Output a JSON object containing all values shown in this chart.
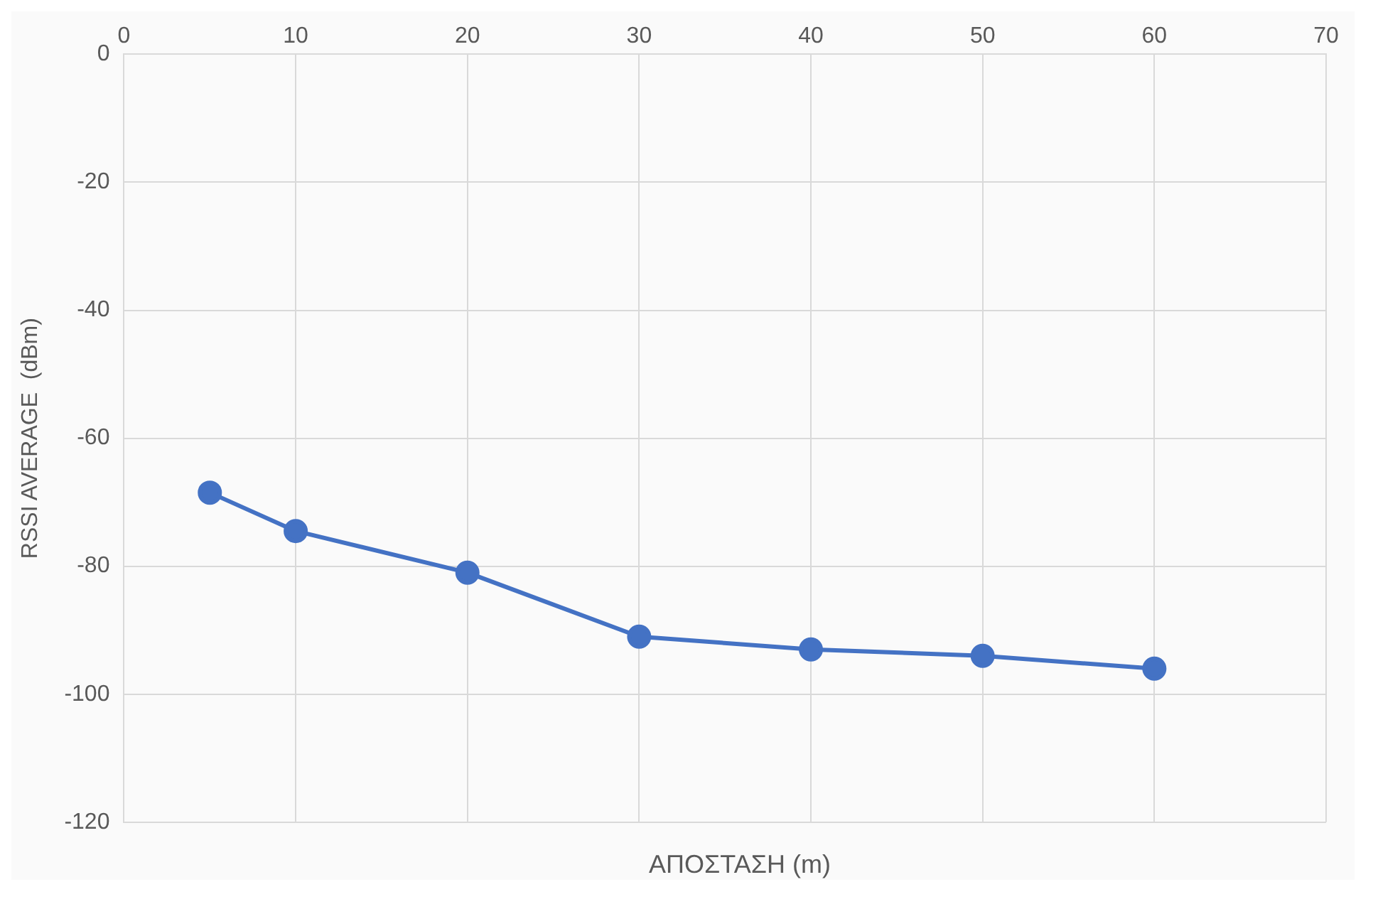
{
  "chart_data": {
    "type": "line",
    "xlabel": "ΑΠΟΣΤΑΣΗ (m)",
    "ylabel": "RSSI AVERAGE  (dBm)",
    "x": [
      5,
      10,
      20,
      30,
      40,
      50,
      60
    ],
    "series": [
      {
        "color": "#4472c4",
        "values": [
          -68.5,
          -74.5,
          -81,
          -91,
          -93,
          -94,
          -96
        ]
      }
    ],
    "xlim": [
      0,
      70
    ],
    "xticks": [
      0,
      10,
      20,
      30,
      40,
      50,
      60,
      70
    ],
    "ylim": [
      -120,
      0
    ],
    "yticks": [
      -120,
      -100,
      -80,
      -60,
      -40,
      -20,
      0
    ],
    "grid": true,
    "legend": false,
    "marker": "circle",
    "line_style": "solid"
  }
}
